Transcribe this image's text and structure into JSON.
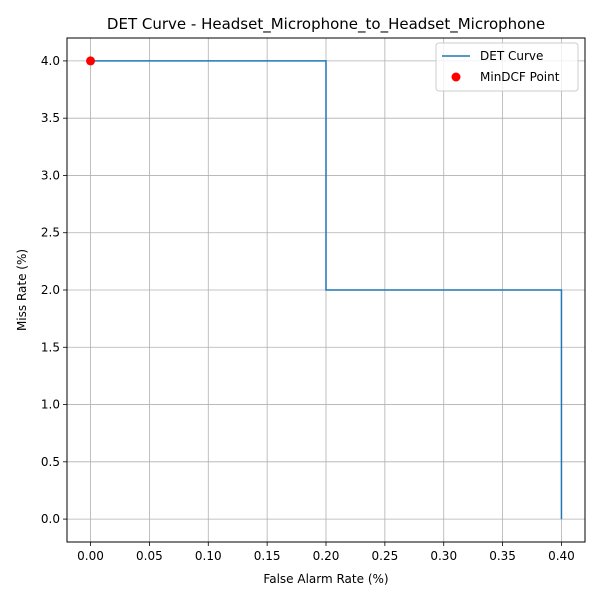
{
  "chart_data": {
    "type": "line",
    "title": "DET Curve - Headset_Microphone_to_Headset_Microphone",
    "xlabel": "False Alarm Rate (%)",
    "ylabel": "Miss Rate (%)",
    "xlim": [
      -0.02,
      0.42
    ],
    "ylim": [
      -0.2,
      4.2
    ],
    "xticks": [
      0.0,
      0.05,
      0.1,
      0.15,
      0.2,
      0.25,
      0.3,
      0.35,
      0.4
    ],
    "xtick_labels": [
      "0.00",
      "0.05",
      "0.10",
      "0.15",
      "0.20",
      "0.25",
      "0.30",
      "0.35",
      "0.40"
    ],
    "yticks": [
      0.0,
      0.5,
      1.0,
      1.5,
      2.0,
      2.5,
      3.0,
      3.5,
      4.0
    ],
    "ytick_labels": [
      "0.0",
      "0.5",
      "1.0",
      "1.5",
      "2.0",
      "2.5",
      "3.0",
      "3.5",
      "4.0"
    ],
    "grid": true,
    "legend_position": "top-right",
    "series": [
      {
        "name": "DET Curve",
        "kind": "line",
        "color": "#1f77b4",
        "x": [
          0.0,
          0.2,
          0.2,
          0.4,
          0.4
        ],
        "y": [
          4.0,
          4.0,
          2.0,
          2.0,
          0.0
        ]
      },
      {
        "name": "MinDCF Point",
        "kind": "scatter",
        "color": "#ff0000",
        "x": [
          0.0
        ],
        "y": [
          4.0
        ]
      }
    ]
  }
}
